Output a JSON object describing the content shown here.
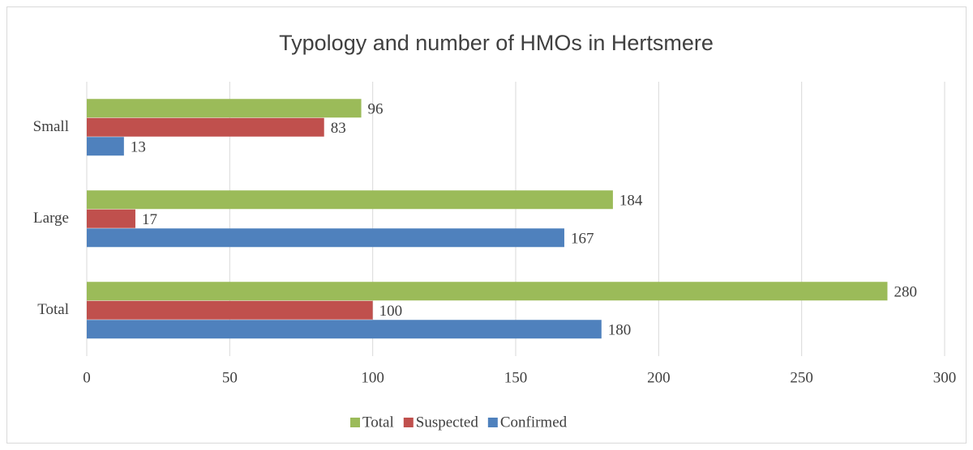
{
  "chart_data": {
    "type": "bar",
    "orientation": "horizontal",
    "title": "Typology and number of HMOs in Hertsmere",
    "categories": [
      "Small",
      "Large",
      "Total"
    ],
    "series": [
      {
        "name": "Total",
        "color": "#9bbb59",
        "values": [
          96,
          184,
          280
        ]
      },
      {
        "name": "Suspected",
        "color": "#c0504d",
        "values": [
          83,
          17,
          100
        ]
      },
      {
        "name": "Confirmed",
        "color": "#4f81bd",
        "values": [
          13,
          167,
          180
        ]
      }
    ],
    "xlim": [
      0,
      300
    ],
    "xticks": [
      0,
      50,
      100,
      150,
      200,
      250,
      300
    ],
    "grid": true,
    "legend": "bottom",
    "data_labels": true
  }
}
